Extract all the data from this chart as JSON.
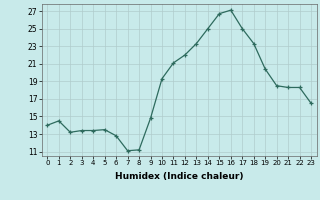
{
  "x": [
    0,
    1,
    2,
    3,
    4,
    5,
    6,
    7,
    8,
    9,
    10,
    11,
    12,
    13,
    14,
    15,
    16,
    17,
    18,
    19,
    20,
    21,
    22,
    23
  ],
  "y": [
    14.0,
    14.5,
    13.2,
    13.4,
    13.4,
    13.5,
    12.8,
    11.1,
    11.2,
    14.8,
    19.3,
    21.1,
    22.0,
    23.3,
    25.0,
    26.7,
    27.1,
    25.0,
    23.3,
    20.4,
    18.5,
    18.3,
    18.3,
    16.5
  ],
  "line_color": "#2e6b5e",
  "marker": "+",
  "marker_size": 3,
  "bg_color": "#c8eaea",
  "grid_color": "#b0cccc",
  "xlabel": "Humidex (Indice chaleur)",
  "xlim": [
    -0.5,
    23.5
  ],
  "ylim": [
    10.5,
    27.8
  ],
  "yticks": [
    11,
    13,
    15,
    17,
    19,
    21,
    23,
    25,
    27
  ],
  "xticks": [
    0,
    1,
    2,
    3,
    4,
    5,
    6,
    7,
    8,
    9,
    10,
    11,
    12,
    13,
    14,
    15,
    16,
    17,
    18,
    19,
    20,
    21,
    22,
    23
  ],
  "xtick_labels": [
    "0",
    "1",
    "2",
    "3",
    "4",
    "5",
    "6",
    "7",
    "8",
    "9",
    "10",
    "11",
    "12",
    "13",
    "14",
    "15",
    "16",
    "17",
    "18",
    "19",
    "20",
    "21",
    "22",
    "23"
  ]
}
